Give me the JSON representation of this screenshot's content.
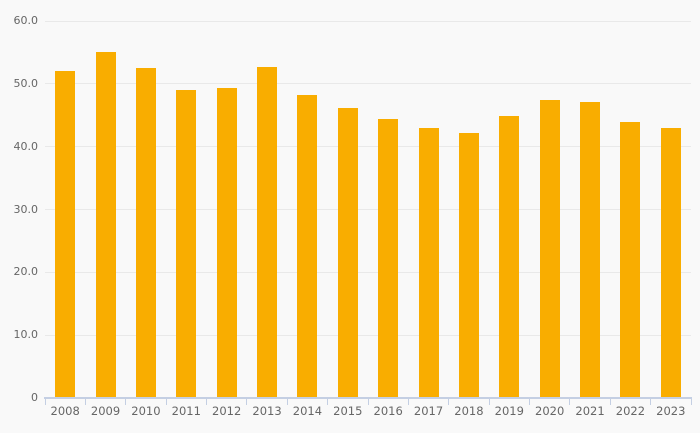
{
  "chart_data": {
    "type": "bar",
    "title": "",
    "xlabel": "",
    "ylabel": "",
    "categories": [
      "2008",
      "2009",
      "2010",
      "2011",
      "2012",
      "2013",
      "2014",
      "2015",
      "2016",
      "2017",
      "2018",
      "2019",
      "2020",
      "2021",
      "2022",
      "2023"
    ],
    "values": [
      52.0,
      55.0,
      52.5,
      49.0,
      49.3,
      52.7,
      48.2,
      46.1,
      44.4,
      42.9,
      42.1,
      44.9,
      47.4,
      47.1,
      44.0,
      43.0
    ],
    "ylim": [
      0,
      60
    ],
    "yticks": [
      {
        "value": 60,
        "label": "60.0"
      },
      {
        "value": 50,
        "label": "50.0"
      },
      {
        "value": 40,
        "label": "40.0"
      },
      {
        "value": 30,
        "label": "30.0"
      },
      {
        "value": 20,
        "label": "20.0"
      },
      {
        "value": 10,
        "label": "10.0"
      },
      {
        "value": 0,
        "label": "0"
      }
    ],
    "grid": true,
    "legend": false,
    "colors": {
      "bar": "#F9AD00",
      "background": "#F9F9F9",
      "gridline": "#E9E9E9",
      "axis_line": "#C4CFE3",
      "tick_label": "#666666"
    }
  }
}
